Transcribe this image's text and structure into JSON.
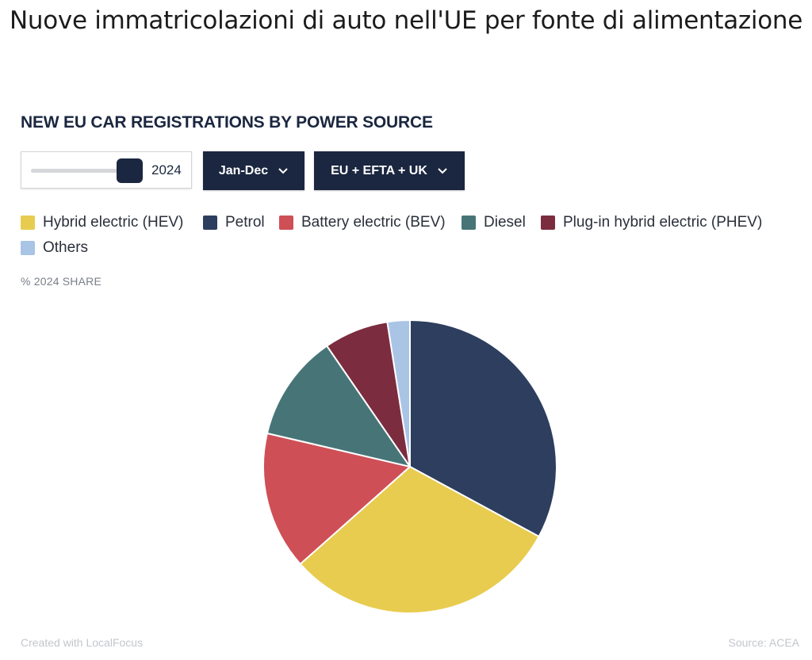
{
  "page": {
    "title": "Nuove immatricolazioni di auto nell'UE per fonte di alimentazione"
  },
  "controls": {
    "year": "2024",
    "period": "Jan-Dec",
    "region": "EU + EFTA + UK"
  },
  "share_label": "% 2024 SHARE",
  "footer": {
    "credit": "Created with LocalFocus",
    "source": "Source: ACEA"
  },
  "chart_data": {
    "type": "pie",
    "title": "NEW EU CAR REGISTRATIONS BY POWER SOURCE",
    "legend_placement": "top",
    "slices": [
      {
        "name": "Petrol",
        "value": 33.3,
        "color": "#2d3e5e"
      },
      {
        "name": "Hybrid electric (HEV)",
        "value": 30.9,
        "color": "#e8cc4f"
      },
      {
        "name": "Battery electric (BEV)",
        "value": 15.4,
        "color": "#cf4f56"
      },
      {
        "name": "Diesel",
        "value": 11.9,
        "color": "#477577"
      },
      {
        "name": "Plug-in hybrid electric (PHEV)",
        "value": 7.2,
        "color": "#7c2c3f"
      },
      {
        "name": "Others",
        "value": 2.5,
        "color": "#a9c4e5"
      }
    ],
    "legend_order": [
      "Hybrid electric (HEV)",
      "Petrol",
      "Battery electric (BEV)",
      "Diesel",
      "Plug-in hybrid electric (PHEV)",
      "Others"
    ]
  }
}
